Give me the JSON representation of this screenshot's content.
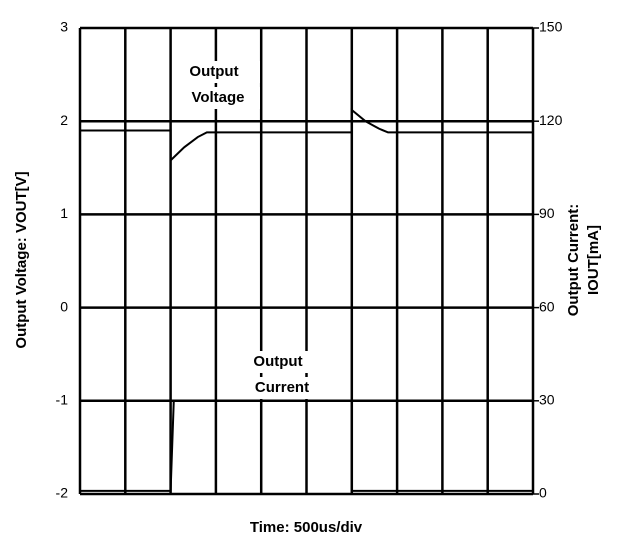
{
  "chart_data": {
    "type": "line",
    "xlabel": "Time: 500us/div",
    "ylabel": "Output Voltage: VOUT[V]",
    "y2label": [
      "Output Current:",
      "IOUT[mA]"
    ],
    "xlim": [
      0,
      10
    ],
    "xticks": [
      0,
      1,
      2,
      3,
      4,
      5,
      6,
      7,
      8,
      9,
      10
    ],
    "ylim": [
      -2,
      3
    ],
    "yticks": [
      -2,
      -1,
      0,
      1,
      2,
      3
    ],
    "y2lim": [
      0,
      150
    ],
    "y2ticks": [
      0,
      30,
      60,
      90,
      120,
      150
    ],
    "grid": true,
    "annotations": [
      {
        "lines": [
          "Output",
          "Voltage"
        ]
      },
      {
        "lines": [
          "Output",
          "Current"
        ]
      }
    ],
    "series": [
      {
        "color": "#000000",
        "x": [
          0,
          2,
          2,
          2.3,
          2.6,
          2.8,
          6,
          6,
          6.3,
          6.6,
          6.8,
          10
        ],
        "values": [
          1.9,
          1.9,
          1.58,
          1.72,
          1.83,
          1.88,
          1.88,
          2.12,
          2.0,
          1.92,
          1.88,
          1.88
        ]
      },
      {
        "color": "#000000",
        "axis": "y2",
        "x": [
          0,
          2,
          2.07,
          6,
          6,
          10
        ],
        "values": [
          1,
          1,
          30,
          30,
          1,
          1
        ]
      }
    ]
  }
}
